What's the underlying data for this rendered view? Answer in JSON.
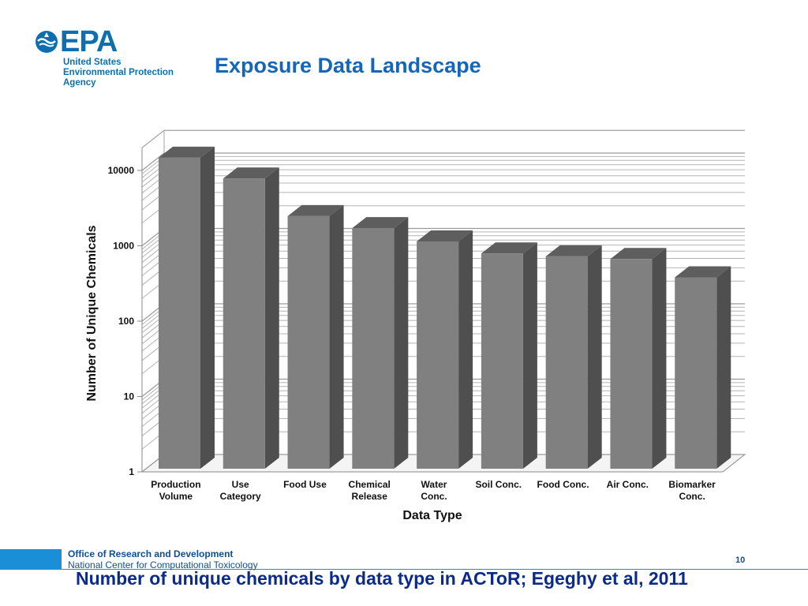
{
  "logo": {
    "wordmark": "EPA",
    "agency_lines": [
      "United States",
      "Environmental Protection",
      "Agency"
    ]
  },
  "slide": {
    "title": "Exposure Data Landscape",
    "caption": "Number of unique chemicals by data type in ACToR; Egeghy et al, 2011",
    "page_number": "10"
  },
  "footer": {
    "office": "Office of Research and Development",
    "center": "National Center for Computational Toxicology"
  },
  "colors": {
    "brand_blue": "#1a8fd8",
    "title_blue": "#1565b8",
    "bar_front": "#808080",
    "bar_side": "#4f4f4f",
    "bar_top": "#5e5e5e"
  },
  "chart_data": {
    "type": "bar",
    "style": "3d",
    "xlabel": "Data Type",
    "ylabel": "Number of Unique Chemicals",
    "scale": "log",
    "ylim": [
      1,
      20000
    ],
    "yticks": [
      1,
      10,
      100,
      1000,
      10000
    ],
    "ytick_labels": [
      "1",
      "10",
      "100",
      "1000",
      "10000"
    ],
    "categories": [
      [
        "Production",
        "Volume"
      ],
      [
        "Use",
        "Category"
      ],
      [
        "Food Use"
      ],
      [
        "Chemical",
        "Release"
      ],
      [
        "Water",
        "Conc."
      ],
      [
        "Soil Conc."
      ],
      [
        "Food Conc."
      ],
      [
        "Air Conc."
      ],
      [
        "Biomarker",
        "Conc."
      ]
    ],
    "values": [
      15500,
      8200,
      2600,
      1800,
      1200,
      830,
      760,
      700,
      400
    ],
    "grid": true,
    "legend": "none"
  }
}
